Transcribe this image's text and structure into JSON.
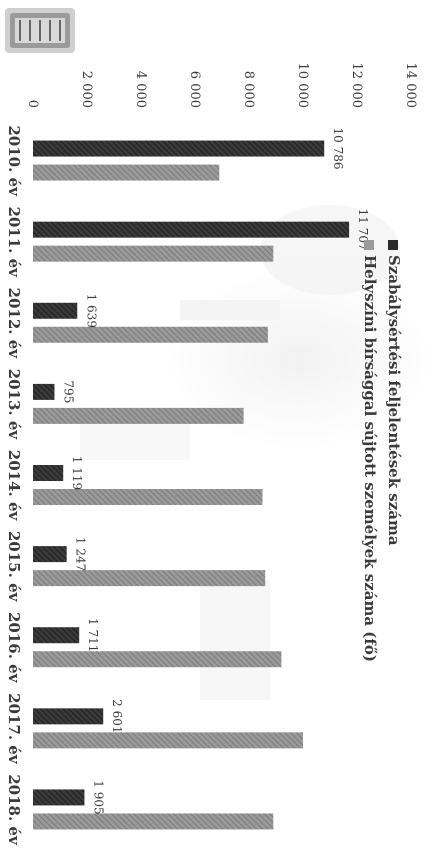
{
  "chart_data": {
    "type": "bar",
    "orientation": "vertical-rotated",
    "categories": [
      "2010. év",
      "2011. év",
      "2012. év",
      "2013. év",
      "2014. év",
      "2015. év",
      "2016. év",
      "2017. év",
      "2018. év"
    ],
    "series": [
      {
        "name": "Szabálysértési feljelentések száma",
        "values": [
          10786,
          11707,
          1639,
          795,
          1119,
          1247,
          1711,
          2601,
          1905
        ],
        "color": "#2a2a2a"
      },
      {
        "name": "Helyszíni bírsággal sújtott személyek száma (fő)",
        "values": [
          6900,
          8900,
          8700,
          7800,
          8500,
          8600,
          9200,
          10000,
          8900
        ],
        "color": "#8a8a8a"
      }
    ],
    "data_labels_series0": [
      "10 786",
      "11 707",
      "1 639",
      "795",
      "1 119",
      "1 247",
      "1 711",
      "2 601",
      "1 905"
    ],
    "yticks": [
      0,
      2000,
      4000,
      6000,
      8000,
      10000,
      12000,
      14000
    ],
    "ytick_labels": [
      "0",
      "2 000",
      "4 000",
      "6 000",
      "8 000",
      "10 000",
      "12 000",
      "14 000"
    ],
    "ylim": [
      0,
      14000
    ],
    "legend_position": "top",
    "grid": false
  }
}
